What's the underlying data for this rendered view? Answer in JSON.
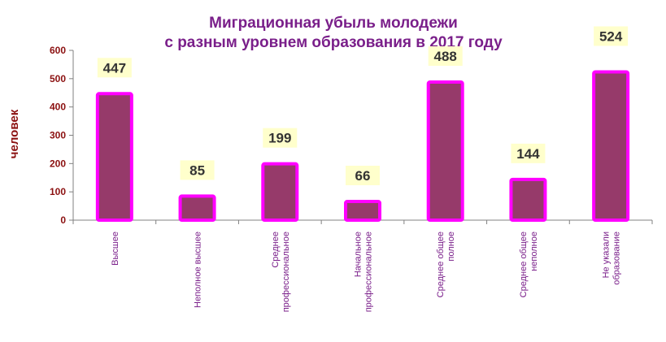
{
  "chart_data": {
    "type": "bar",
    "title": [
      "Миграционная убыль молодежи",
      "с разным уровнем образования в 2017 году"
    ],
    "ylabel": "человек",
    "xlabel": "",
    "ylim": [
      0,
      600
    ],
    "yticks": [
      0,
      100,
      200,
      300,
      400,
      500,
      600
    ],
    "grid": false,
    "categories": [
      [
        "Высшее"
      ],
      [
        "Неполное высшее"
      ],
      [
        "Среднее",
        "профессиональное"
      ],
      [
        "Начальное",
        "профессиональное"
      ],
      [
        "Среднее общее",
        "полное"
      ],
      [
        "Среднее общее",
        "неполное"
      ],
      [
        "Не указали",
        "образование"
      ]
    ],
    "values": [
      447,
      85,
      199,
      66,
      488,
      144,
      524
    ],
    "colors": {
      "bar_fill": "#963a6a",
      "bar_border": "#ff00ff",
      "label_bg": "#ffffcc",
      "title": "#7a1f8a",
      "axis_text": "#8b1010"
    }
  }
}
